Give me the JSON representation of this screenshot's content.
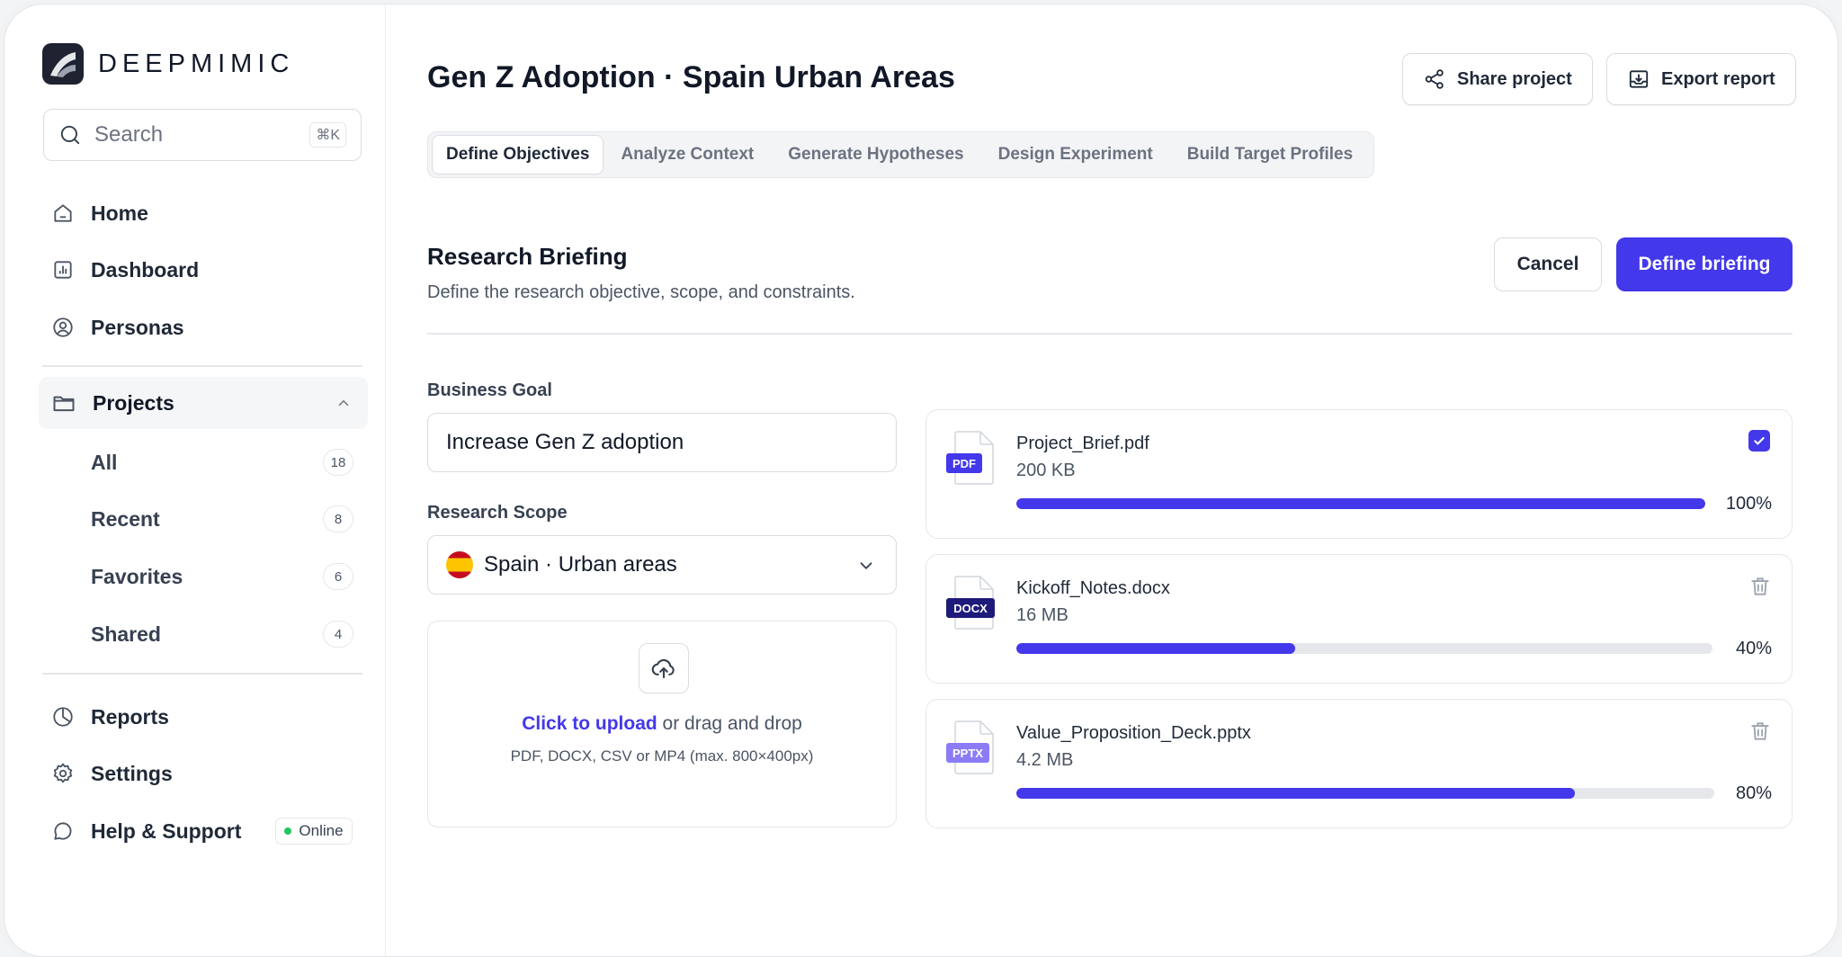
{
  "brand": {
    "name": "DEEPMIMIC"
  },
  "search": {
    "placeholder": "Search",
    "shortcut": "⌘K"
  },
  "nav": {
    "home": "Home",
    "dashboard": "Dashboard",
    "personas": "Personas",
    "projects": "Projects",
    "reports": "Reports",
    "settings": "Settings",
    "help": "Help & Support",
    "help_status": "Online"
  },
  "project_items": [
    {
      "label": "All",
      "count": "18"
    },
    {
      "label": "Recent",
      "count": "8"
    },
    {
      "label": "Favorites",
      "count": "6"
    },
    {
      "label": "Shared",
      "count": "4"
    }
  ],
  "header": {
    "title": "Gen Z Adoption · Spain Urban Areas",
    "share_label": "Share project",
    "export_label": "Export report"
  },
  "tabs": [
    "Define Objectives",
    "Analyze Context",
    "Generate Hypotheses",
    "Design Experiment",
    "Build Target Profiles"
  ],
  "briefing": {
    "title": "Research Briefing",
    "description": "Define the research objective, scope, and constraints.",
    "cancel_label": "Cancel",
    "submit_label": "Define briefing"
  },
  "form": {
    "goal_label": "Business Goal",
    "goal_value": "Increase Gen Z adoption",
    "scope_label": "Research Scope",
    "scope_value": "Spain · Urban areas"
  },
  "upload": {
    "link": "Click to upload",
    "text": " or drag and drop",
    "hint": "PDF, DOCX, CSV or MP4 (max. 800×400px)"
  },
  "files": [
    {
      "name": "Project_Brief.pdf",
      "size": "200 KB",
      "type": "PDF",
      "progress_pct": 100,
      "progress_label": "100%",
      "badge_color": "#4338ea",
      "status": "complete"
    },
    {
      "name": "Kickoff_Notes.docx",
      "size": "16 MB",
      "type": "DOCX",
      "progress_pct": 40,
      "progress_label": "40%",
      "badge_color": "#1e1b7a",
      "status": "uploading"
    },
    {
      "name": "Value_Proposition_Deck.pptx",
      "size": "4.2 MB",
      "type": "PPTX",
      "progress_pct": 80,
      "progress_label": "80%",
      "badge_color": "#8b7cf6",
      "status": "uploading"
    }
  ],
  "colors": {
    "accent": "#4338ea",
    "online": "#22c55e"
  }
}
